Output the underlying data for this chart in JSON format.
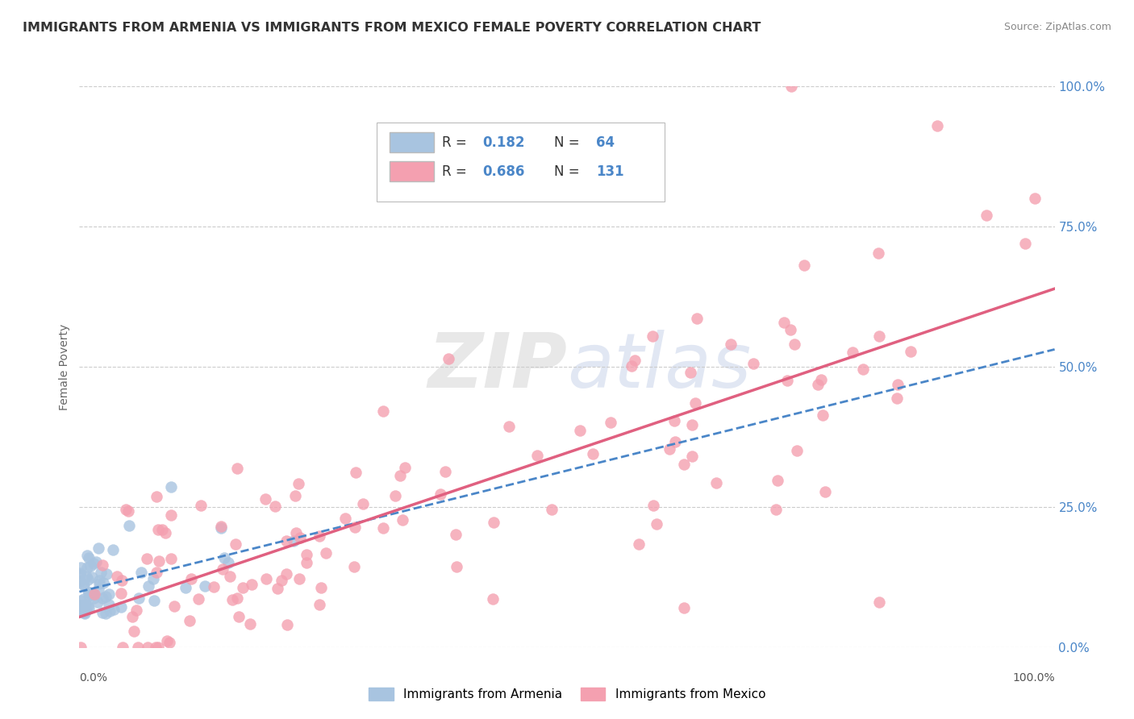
{
  "title": "IMMIGRANTS FROM ARMENIA VS IMMIGRANTS FROM MEXICO FEMALE POVERTY CORRELATION CHART",
  "source": "Source: ZipAtlas.com",
  "ylabel": "Female Poverty",
  "yticks": [
    "0.0%",
    "25.0%",
    "50.0%",
    "75.0%",
    "100.0%"
  ],
  "ytick_vals": [
    0.0,
    0.25,
    0.5,
    0.75,
    1.0
  ],
  "armenia_R": 0.182,
  "armenia_N": 64,
  "mexico_R": 0.686,
  "mexico_N": 131,
  "legend_labels": [
    "Immigrants from Armenia",
    "Immigrants from Mexico"
  ],
  "armenia_color": "#a8c4e0",
  "mexico_color": "#f4a0b0",
  "armenia_line_color": "#4a86c8",
  "mexico_line_color": "#e06080",
  "background_color": "#ffffff",
  "title_color": "#333333",
  "title_fontsize": 11.5,
  "R_N_color": "#4a86c8",
  "grid_color": "#cccccc",
  "xmin": 0.0,
  "xmax": 1.0,
  "ymin": 0.0,
  "ymax": 1.0
}
